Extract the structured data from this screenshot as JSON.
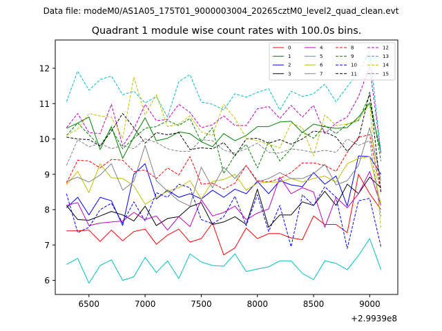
{
  "header": {
    "subtitle": "Data file: modeM0/AS1A05_175T01_9000003004_20265cztM0_level2_quad_clean.evt"
  },
  "chart_data": {
    "type": "line",
    "title": "Quadrant 1 module wise count rates with 100.0s bins.",
    "xlabel": "",
    "ylabel": "",
    "x_offset_label": "+2.9939e8",
    "xlim": [
      6200,
      9250
    ],
    "ylim": [
      5.6,
      12.8
    ],
    "xticks": [
      6500,
      7000,
      7500,
      8000,
      8500,
      9000
    ],
    "yticks": [
      6,
      7,
      8,
      9,
      10,
      11,
      12
    ],
    "grid": false,
    "legend_position": "top-right",
    "x": [
      6300,
      6400,
      6500,
      6600,
      6700,
      6800,
      6900,
      7000,
      7100,
      7200,
      7300,
      7400,
      7500,
      7600,
      7700,
      7800,
      7900,
      8000,
      8100,
      8200,
      8300,
      8400,
      8500,
      8600,
      8700,
      8800,
      8900,
      9000,
      9100
    ],
    "series": [
      {
        "name": "0",
        "color": "#ff0000",
        "dash": "solid",
        "values": [
          7.4,
          7.4,
          7.42,
          7.1,
          7.42,
          7.12,
          7.38,
          7.45,
          7.02,
          7.28,
          7.45,
          7.08,
          7.18,
          7.62,
          6.72,
          6.92,
          7.48,
          7.18,
          7.32,
          7.32,
          7.2,
          7.15,
          7.82,
          7.58,
          7.58,
          7.35,
          9.0,
          8.45,
          8.0
        ]
      },
      {
        "name": "1",
        "color": "#008000",
        "dash": "solid",
        "values": [
          10.3,
          10.45,
          10.62,
          9.7,
          10.35,
          9.45,
          10.05,
          10.6,
          9.95,
          10.02,
          10.2,
          10.15,
          9.92,
          9.78,
          10.15,
          9.95,
          10.1,
          10.35,
          10.35,
          10.48,
          10.5,
          10.18,
          10.42,
          10.35,
          10.3,
          10.32,
          10.62,
          11.02,
          9.62
        ]
      },
      {
        "name": "2",
        "color": "#0000ff",
        "dash": "solid",
        "values": [
          8.05,
          8.35,
          7.85,
          8.35,
          8.25,
          7.55,
          9.0,
          9.3,
          8.3,
          8.55,
          8.35,
          8.45,
          8.3,
          8.55,
          8.35,
          8.58,
          8.45,
          8.8,
          8.45,
          8.82,
          8.7,
          8.65,
          9.05,
          8.72,
          8.95,
          8.1,
          9.52,
          9.5,
          9.0
        ]
      },
      {
        "name": "3",
        "color": "#000000",
        "dash": "solid",
        "values": [
          8.12,
          7.72,
          7.7,
          7.82,
          7.95,
          7.85,
          7.68,
          8.1,
          7.55,
          7.75,
          7.8,
          8.08,
          8.2,
          7.58,
          7.65,
          7.8,
          7.58,
          8.58,
          7.5,
          7.85,
          7.85,
          8.22,
          8.12,
          8.52,
          8.12,
          8.72,
          8.45,
          8.92,
          8.62
        ]
      },
      {
        "name": "4",
        "color": "#bf00bf",
        "dash": "solid",
        "values": [
          8.12,
          8.2,
          7.55,
          7.62,
          7.65,
          7.68,
          7.92,
          7.72,
          7.82,
          7.42,
          7.8,
          7.52,
          8.28,
          7.82,
          7.92,
          8.1,
          7.72,
          7.9,
          8.02,
          8.92,
          8.45,
          8.62,
          8.5,
          7.5,
          8.35,
          8.05,
          8.45,
          9.08,
          8.12
        ]
      },
      {
        "name": "5",
        "color": "#00bfbf",
        "dash": "solid",
        "values": [
          6.45,
          6.62,
          5.92,
          6.42,
          6.58,
          6.0,
          6.1,
          6.65,
          6.22,
          6.55,
          6.05,
          6.75,
          6.52,
          6.42,
          6.4,
          6.75,
          6.25,
          6.32,
          6.38,
          6.55,
          6.55,
          6.2,
          6.02,
          6.55,
          6.48,
          6.3,
          6.7,
          7.18,
          6.3
        ]
      },
      {
        "name": "6",
        "color": "#bfbf00",
        "dash": "solid",
        "values": [
          8.7,
          9.08,
          8.48,
          9.3,
          8.9,
          8.88,
          8.68,
          8.15,
          8.35,
          8.52,
          8.62,
          8.82,
          8.3,
          8.8,
          8.85,
          9.0,
          8.55,
          8.75,
          8.78,
          8.78,
          8.88,
          8.78,
          8.88,
          8.95,
          8.78,
          9.3,
          9.45,
          9.5,
          8.15
        ]
      },
      {
        "name": "7",
        "color": "#808080",
        "dash": "solid",
        "values": [
          8.8,
          8.92,
          8.78,
          8.98,
          9.3,
          8.55,
          8.8,
          9.82,
          8.82,
          8.52,
          8.25,
          8.1,
          9.2,
          8.62,
          9.2,
          8.88,
          9.25,
          8.78,
          8.88,
          9.05,
          8.88,
          8.88,
          9.02,
          9.28,
          8.7,
          8.82,
          9.25,
          10.32,
          8.82
        ]
      },
      {
        "name": "8",
        "color": "#ff0000",
        "dash": "dashed",
        "values": [
          8.75,
          9.4,
          9.38,
          9.18,
          9.42,
          9.4,
          9.08,
          9.12,
          8.88,
          9.18,
          8.98,
          9.5,
          8.72,
          8.75,
          8.58,
          8.75,
          9.25,
          8.82,
          8.78,
          8.88,
          9.05,
          9.32,
          9.32,
          9.25,
          9.08,
          9.62,
          10.05,
          10.12,
          8.5
        ]
      },
      {
        "name": "9",
        "color": "#008000",
        "dash": "dashed",
        "values": [
          10.1,
          10.45,
          10.12,
          9.8,
          10.3,
          9.72,
          10.02,
          10.3,
          10.35,
          10.52,
          10.38,
          10.58,
          9.92,
          10.32,
          9.02,
          9.55,
          9.85,
          9.18,
          9.92,
          9.38,
          9.72,
          10.2,
          10.02,
          10.38,
          10.15,
          10.42,
          10.52,
          11.25,
          9.38
        ]
      },
      {
        "name": "10",
        "color": "#0000ff",
        "dash": "dashed",
        "values": [
          8.45,
          7.35,
          7.5,
          8.0,
          8.18,
          7.62,
          8.22,
          7.68,
          8.48,
          8.35,
          8.72,
          8.62,
          7.72,
          7.6,
          7.8,
          8.38,
          7.55,
          8.42,
          7.38,
          8.12,
          6.95,
          8.42,
          8.12,
          8.65,
          8.35,
          6.9,
          8.25,
          8.32,
          6.95
        ]
      },
      {
        "name": "11",
        "color": "#000000",
        "dash": "dashed",
        "values": [
          10.05,
          10.0,
          9.98,
          9.8,
          10.22,
          10.72,
          10.32,
          9.88,
          10.18,
          10.12,
          10.18,
          9.7,
          9.75,
          9.72,
          9.9,
          9.52,
          10.0,
          10.02,
          9.88,
          9.98,
          9.85,
          10.0,
          10.22,
          10.2,
          10.05,
          9.65,
          10.0,
          11.32,
          8.5
        ]
      },
      {
        "name": "12",
        "color": "#bf00bf",
        "dash": "dashed",
        "values": [
          10.32,
          10.72,
          10.18,
          10.15,
          10.98,
          9.8,
          10.28,
          10.98,
          10.52,
          10.55,
          10.98,
          10.75,
          10.32,
          10.4,
          10.65,
          10.38,
          10.38,
          10.85,
          10.92,
          10.58,
          10.95,
          10.62,
          10.95,
          10.15,
          10.45,
          10.62,
          11.2,
          12.05,
          9.58
        ]
      },
      {
        "name": "13",
        "color": "#00bfbf",
        "dash": "dashed",
        "values": [
          11.05,
          11.92,
          11.38,
          11.68,
          11.78,
          11.25,
          11.35,
          11.02,
          11.2,
          10.62,
          11.62,
          11.82,
          11.05,
          10.98,
          10.82,
          11.28,
          11.18,
          11.32,
          11.42,
          10.82,
          11.35,
          11.2,
          11.28,
          11.55,
          11.05,
          11.48,
          11.88,
          12.48,
          9.6
        ]
      },
      {
        "name": "14",
        "color": "#bfbf00",
        "dash": "dashed",
        "values": [
          10.1,
          10.28,
          10.72,
          10.65,
          10.62,
          10.02,
          11.75,
          10.68,
          11.25,
          10.35,
          10.42,
          10.65,
          10.2,
          10.1,
          10.98,
          10.58,
          10.02,
          9.95,
          9.85,
          9.75,
          10.45,
          10.32,
          9.52,
          10.68,
          10.38,
          10.42,
          10.55,
          11.0,
          7.45
        ]
      },
      {
        "name": "15",
        "color": "#808080",
        "dash": "dashed",
        "values": [
          9.25,
          9.98,
          9.78,
          9.88,
          9.72,
          9.82,
          9.72,
          10.0,
          9.9,
          9.72,
          9.65,
          9.65,
          9.98,
          9.95,
          9.68,
          9.6,
          9.72,
          9.88,
          9.62,
          9.6,
          9.72,
          9.68,
          9.62,
          9.68,
          9.62,
          10.0,
          9.82,
          9.95,
          7.8
        ]
      }
    ]
  }
}
